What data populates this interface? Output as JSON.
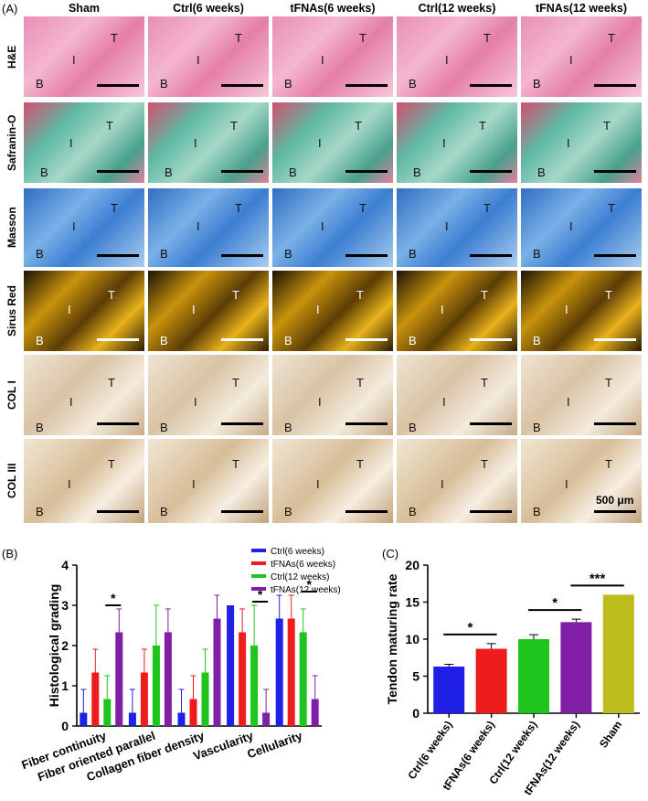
{
  "panel_labels": {
    "a": "(A)",
    "b": "(B)",
    "c": "(C)"
  },
  "grid": {
    "columns": [
      "Sham",
      "Ctrl(6 weeks)",
      "tFNAs(6 weeks)",
      "Ctrl(12 weeks)",
      "tFNAs(12 weeks)"
    ],
    "rows": [
      "H&E",
      "Safranin-O",
      "Masson",
      "Sirus Red",
      "COL I",
      "COL III"
    ],
    "region_labels": {
      "tendon": "T",
      "interface": "I",
      "bone": "B"
    },
    "scale_bar": "500 μm"
  },
  "chart_data": [
    {
      "type": "bar",
      "ylabel": "Histological grading",
      "ylim": [
        0,
        4
      ],
      "yticks": [
        "0",
        "1",
        "2",
        "3",
        "4"
      ],
      "categories": [
        "Fiber continuity",
        "Fiber oriented parallel",
        "Collagen fiber density",
        "Vascularity",
        "Cellularity"
      ],
      "series": [
        {
          "name": "Ctrl(6 weeks)",
          "color": "#1f1fe6",
          "values": [
            0.33,
            0.33,
            0.33,
            3.0,
            2.67
          ],
          "errors": [
            0.58,
            0.58,
            0.58,
            0.0,
            0.58
          ]
        },
        {
          "name": "tFNAs(6 weeks)",
          "color": "#ee1c1c",
          "values": [
            1.33,
            1.33,
            0.67,
            2.33,
            2.67
          ],
          "errors": [
            0.58,
            0.58,
            0.58,
            0.58,
            0.58
          ]
        },
        {
          "name": "Ctrl(12 weeks)",
          "color": "#1fc41f",
          "values": [
            0.67,
            2.0,
            1.33,
            2.0,
            2.33
          ],
          "errors": [
            0.58,
            1.0,
            0.58,
            1.0,
            0.58
          ]
        },
        {
          "name": "tFNAs(12 weeks)",
          "color": "#7f1fa6",
          "values": [
            2.33,
            2.33,
            2.67,
            0.33,
            0.67
          ],
          "errors": [
            0.58,
            0.58,
            0.58,
            0.58,
            0.58
          ]
        }
      ],
      "significance": [
        {
          "category": "Fiber continuity",
          "label": "*"
        },
        {
          "category": "Vascularity",
          "label": "*"
        },
        {
          "category": "Cellularity",
          "label": "*"
        }
      ],
      "legend": "top-right"
    },
    {
      "type": "bar",
      "ylabel": "Tendon maturing rate",
      "ylim": [
        0,
        20
      ],
      "yticks": [
        "0",
        "5",
        "10",
        "15",
        "20"
      ],
      "categories": [
        "Ctrl(6 weeks)",
        "tFNAs(6 weeks)",
        "Ctrl(12 weeks)",
        "tFNAs(12 weeks)",
        "Sham"
      ],
      "values": [
        6.3,
        8.7,
        10.0,
        12.3,
        16.0
      ],
      "errors": [
        0.3,
        0.7,
        0.6,
        0.4,
        0.0
      ],
      "colors": [
        "#1f1fe6",
        "#ee1c1c",
        "#1fc41f",
        "#7f1fa6",
        "#bcbc1c"
      ],
      "significance": [
        {
          "pair": [
            "Ctrl(6 weeks)",
            "tFNAs(6 weeks)"
          ],
          "label": "*"
        },
        {
          "pair": [
            "Ctrl(12 weeks)",
            "tFNAs(12 weeks)"
          ],
          "label": "*"
        },
        {
          "pair": [
            "tFNAs(12 weeks)",
            "Sham"
          ],
          "label": "***"
        }
      ]
    }
  ]
}
